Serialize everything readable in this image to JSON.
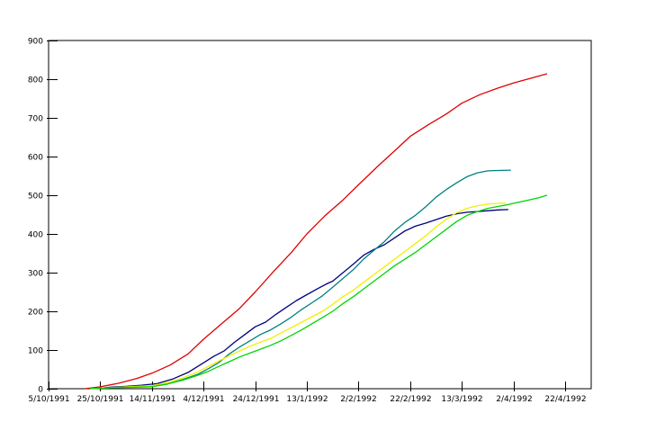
{
  "chart_data": {
    "type": "line",
    "title": "",
    "legend": "none",
    "grid": false,
    "background": "#ffffff",
    "axis_color": "#000000",
    "x_axis": {
      "label": "",
      "tick_labels": [
        "5/10/1991",
        "25/10/1991",
        "14/11/1991",
        "4/12/1991",
        "24/12/1991",
        "13/1/1992",
        "2/2/1992",
        "22/2/1992",
        "13/3/1992",
        "2/4/1992",
        "22/4/1992"
      ],
      "tick_days": [
        0,
        20,
        40,
        60,
        80,
        100,
        120,
        140,
        160,
        180,
        200
      ],
      "domain_days": [
        0,
        210
      ]
    },
    "y_axis": {
      "label": "",
      "min": 0,
      "max": 900,
      "step": 100,
      "tick_labels": [
        "0",
        "100",
        "200",
        "300",
        "400",
        "500",
        "600",
        "700",
        "800",
        "900"
      ]
    },
    "series": [
      {
        "name": "red-line",
        "color": "#e10000",
        "points": [
          [
            14,
            0
          ],
          [
            20,
            5
          ],
          [
            27,
            14
          ],
          [
            34,
            26
          ],
          [
            40,
            40
          ],
          [
            47,
            61
          ],
          [
            54,
            90
          ],
          [
            60,
            128
          ],
          [
            67,
            168
          ],
          [
            74,
            208
          ],
          [
            80,
            250
          ],
          [
            87,
            302
          ],
          [
            94,
            352
          ],
          [
            100,
            400
          ],
          [
            107,
            447
          ],
          [
            114,
            488
          ],
          [
            120,
            527
          ],
          [
            127,
            572
          ],
          [
            134,
            615
          ],
          [
            140,
            652
          ],
          [
            147,
            682
          ],
          [
            154,
            710
          ],
          [
            160,
            738
          ],
          [
            167,
            760
          ],
          [
            174,
            777
          ],
          [
            180,
            790
          ],
          [
            187,
            803
          ],
          [
            193,
            814
          ]
        ]
      },
      {
        "name": "navy-line",
        "color": "#000080",
        "points": [
          [
            18,
            0
          ],
          [
            24,
            4
          ],
          [
            30,
            6
          ],
          [
            36,
            9
          ],
          [
            42,
            13
          ],
          [
            48,
            25
          ],
          [
            54,
            42
          ],
          [
            60,
            67
          ],
          [
            64,
            84
          ],
          [
            68,
            98
          ],
          [
            72,
            120
          ],
          [
            76,
            140
          ],
          [
            80,
            160
          ],
          [
            84,
            172
          ],
          [
            88,
            192
          ],
          [
            92,
            210
          ],
          [
            96,
            228
          ],
          [
            100,
            243
          ],
          [
            104,
            258
          ],
          [
            108,
            272
          ],
          [
            110,
            278
          ],
          [
            114,
            300
          ],
          [
            118,
            322
          ],
          [
            122,
            345
          ],
          [
            126,
            360
          ],
          [
            130,
            372
          ],
          [
            134,
            390
          ],
          [
            138,
            408
          ],
          [
            142,
            420
          ],
          [
            146,
            428
          ],
          [
            150,
            437
          ],
          [
            154,
            446
          ],
          [
            158,
            452
          ],
          [
            162,
            456
          ],
          [
            166,
            458
          ],
          [
            170,
            460
          ],
          [
            174,
            462
          ],
          [
            178,
            463
          ]
        ]
      },
      {
        "name": "teal-line",
        "color": "#008080",
        "points": [
          [
            16,
            0
          ],
          [
            22,
            2
          ],
          [
            28,
            4
          ],
          [
            34,
            5
          ],
          [
            40,
            6
          ],
          [
            46,
            12
          ],
          [
            52,
            24
          ],
          [
            58,
            38
          ],
          [
            62,
            52
          ],
          [
            66,
            68
          ],
          [
            70,
            90
          ],
          [
            74,
            108
          ],
          [
            78,
            124
          ],
          [
            82,
            140
          ],
          [
            86,
            152
          ],
          [
            90,
            168
          ],
          [
            94,
            185
          ],
          [
            98,
            205
          ],
          [
            102,
            222
          ],
          [
            106,
            240
          ],
          [
            110,
            262
          ],
          [
            114,
            285
          ],
          [
            118,
            308
          ],
          [
            122,
            335
          ],
          [
            126,
            358
          ],
          [
            130,
            380
          ],
          [
            134,
            408
          ],
          [
            138,
            430
          ],
          [
            142,
            448
          ],
          [
            146,
            470
          ],
          [
            150,
            495
          ],
          [
            154,
            515
          ],
          [
            158,
            532
          ],
          [
            162,
            548
          ],
          [
            166,
            558
          ],
          [
            170,
            563
          ],
          [
            174,
            564
          ],
          [
            179,
            565
          ]
        ]
      },
      {
        "name": "yellow-line",
        "color": "#f0f000",
        "points": [
          [
            16,
            0
          ],
          [
            22,
            2
          ],
          [
            28,
            4
          ],
          [
            34,
            6
          ],
          [
            40,
            8
          ],
          [
            46,
            16
          ],
          [
            52,
            28
          ],
          [
            58,
            44
          ],
          [
            62,
            58
          ],
          [
            66,
            72
          ],
          [
            70,
            85
          ],
          [
            74,
            98
          ],
          [
            78,
            110
          ],
          [
            82,
            120
          ],
          [
            86,
            130
          ],
          [
            90,
            144
          ],
          [
            94,
            158
          ],
          [
            98,
            172
          ],
          [
            102,
            186
          ],
          [
            106,
            200
          ],
          [
            110,
            218
          ],
          [
            114,
            238
          ],
          [
            118,
            255
          ],
          [
            122,
            275
          ],
          [
            126,
            295
          ],
          [
            130,
            315
          ],
          [
            134,
            335
          ],
          [
            138,
            355
          ],
          [
            142,
            375
          ],
          [
            146,
            395
          ],
          [
            150,
            418
          ],
          [
            154,
            438
          ],
          [
            158,
            455
          ],
          [
            162,
            466
          ],
          [
            166,
            473
          ],
          [
            170,
            477
          ],
          [
            174,
            479
          ],
          [
            177,
            480
          ]
        ]
      },
      {
        "name": "green-line",
        "color": "#00d500",
        "points": [
          [
            16,
            0
          ],
          [
            22,
            2
          ],
          [
            28,
            3
          ],
          [
            34,
            4
          ],
          [
            40,
            5
          ],
          [
            46,
            12
          ],
          [
            52,
            22
          ],
          [
            58,
            35
          ],
          [
            62,
            45
          ],
          [
            66,
            58
          ],
          [
            70,
            70
          ],
          [
            74,
            82
          ],
          [
            78,
            92
          ],
          [
            82,
            102
          ],
          [
            86,
            112
          ],
          [
            90,
            124
          ],
          [
            94,
            138
          ],
          [
            98,
            152
          ],
          [
            102,
            168
          ],
          [
            106,
            184
          ],
          [
            110,
            200
          ],
          [
            114,
            220
          ],
          [
            118,
            238
          ],
          [
            122,
            258
          ],
          [
            126,
            278
          ],
          [
            130,
            298
          ],
          [
            134,
            318
          ],
          [
            138,
            335
          ],
          [
            142,
            352
          ],
          [
            146,
            372
          ],
          [
            150,
            392
          ],
          [
            154,
            412
          ],
          [
            158,
            432
          ],
          [
            162,
            448
          ],
          [
            166,
            458
          ],
          [
            170,
            466
          ],
          [
            174,
            471
          ],
          [
            178,
            476
          ],
          [
            182,
            482
          ],
          [
            186,
            488
          ],
          [
            190,
            494
          ],
          [
            193,
            500
          ]
        ]
      }
    ]
  }
}
